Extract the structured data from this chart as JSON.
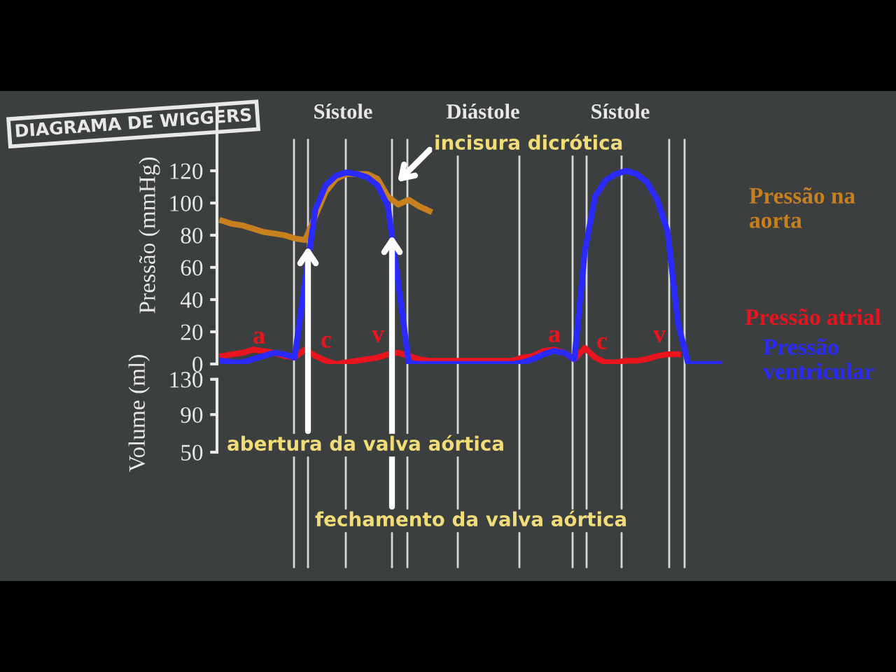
{
  "chart_data": [
    {
      "type": "line",
      "title": "DIAGRAMA DE WIGGERS",
      "ylabel": "Pressão (mmHg)",
      "ylim": [
        0,
        160
      ],
      "yticks": [
        0,
        20,
        40,
        60,
        80,
        100,
        120
      ],
      "tick_labels": "y",
      "grid": "x",
      "legend": false,
      "marker": "none",
      "line_style": "solid",
      "categories": [
        null,
        null,
        null,
        null,
        null,
        null,
        null,
        null,
        null,
        null,
        null,
        null,
        null,
        null,
        null,
        null,
        null,
        null,
        null,
        null,
        null,
        null,
        null,
        null,
        null,
        null,
        null,
        null,
        null,
        null,
        null,
        null,
        null,
        null,
        null,
        null,
        null,
        null,
        null,
        null,
        null,
        null,
        null,
        null,
        null,
        null,
        null,
        null,
        null,
        null
      ],
      "series": [
        {
          "name": "Pressão na aorta",
          "color": "#c8801e",
          "values": [
            89,
            87,
            86,
            84,
            82,
            81,
            80,
            78,
            77,
            92,
            107,
            115,
            118,
            118,
            118,
            115,
            104,
            99,
            102,
            98,
            95,
            null,
            null,
            null,
            null,
            null,
            null,
            null,
            null,
            null,
            null,
            null,
            null,
            null,
            null,
            null,
            null,
            null,
            null,
            null,
            null,
            null,
            null,
            null,
            null,
            null,
            null,
            null,
            null,
            null
          ]
        },
        {
          "name": "Pressão atrial",
          "color": "#e8141e",
          "values": [
            5,
            6,
            7,
            9,
            8,
            7,
            5,
            4,
            9,
            5,
            2,
            0,
            1,
            2,
            3,
            4,
            6,
            7,
            5,
            3,
            2,
            2,
            2,
            2,
            2,
            2,
            2,
            2,
            2,
            4,
            5,
            8,
            9,
            7,
            3,
            10,
            4,
            1,
            1,
            2,
            2,
            3,
            5,
            6,
            6,
            null,
            null,
            null,
            null,
            null
          ]
        },
        {
          "name": "Pressão ventricular",
          "color": "#2a2aff",
          "values": [
            2,
            1,
            1,
            3,
            5,
            7,
            6,
            4,
            52,
            96,
            111,
            117,
            119,
            118,
            116,
            111,
            98,
            50,
            1,
            0,
            0,
            0,
            0,
            0,
            0,
            0,
            0,
            0,
            0,
            1,
            3,
            6,
            8,
            7,
            3,
            70,
            104,
            114,
            118,
            120,
            118,
            113,
            102,
            82,
            25,
            0,
            0,
            0,
            0,
            null
          ]
        }
      ],
      "annotations": [
        "Sístole",
        "Diástole",
        "Sístole",
        "incisura dicrótica",
        "abertura da valva aórtica",
        "fechamento da valva aórtica",
        "a",
        "c",
        "v",
        "a",
        "c",
        "v"
      ]
    },
    {
      "type": "other",
      "ylabel": "Volume (ml)",
      "annotations": [
        "130",
        "90",
        "50"
      ]
    }
  ]
}
